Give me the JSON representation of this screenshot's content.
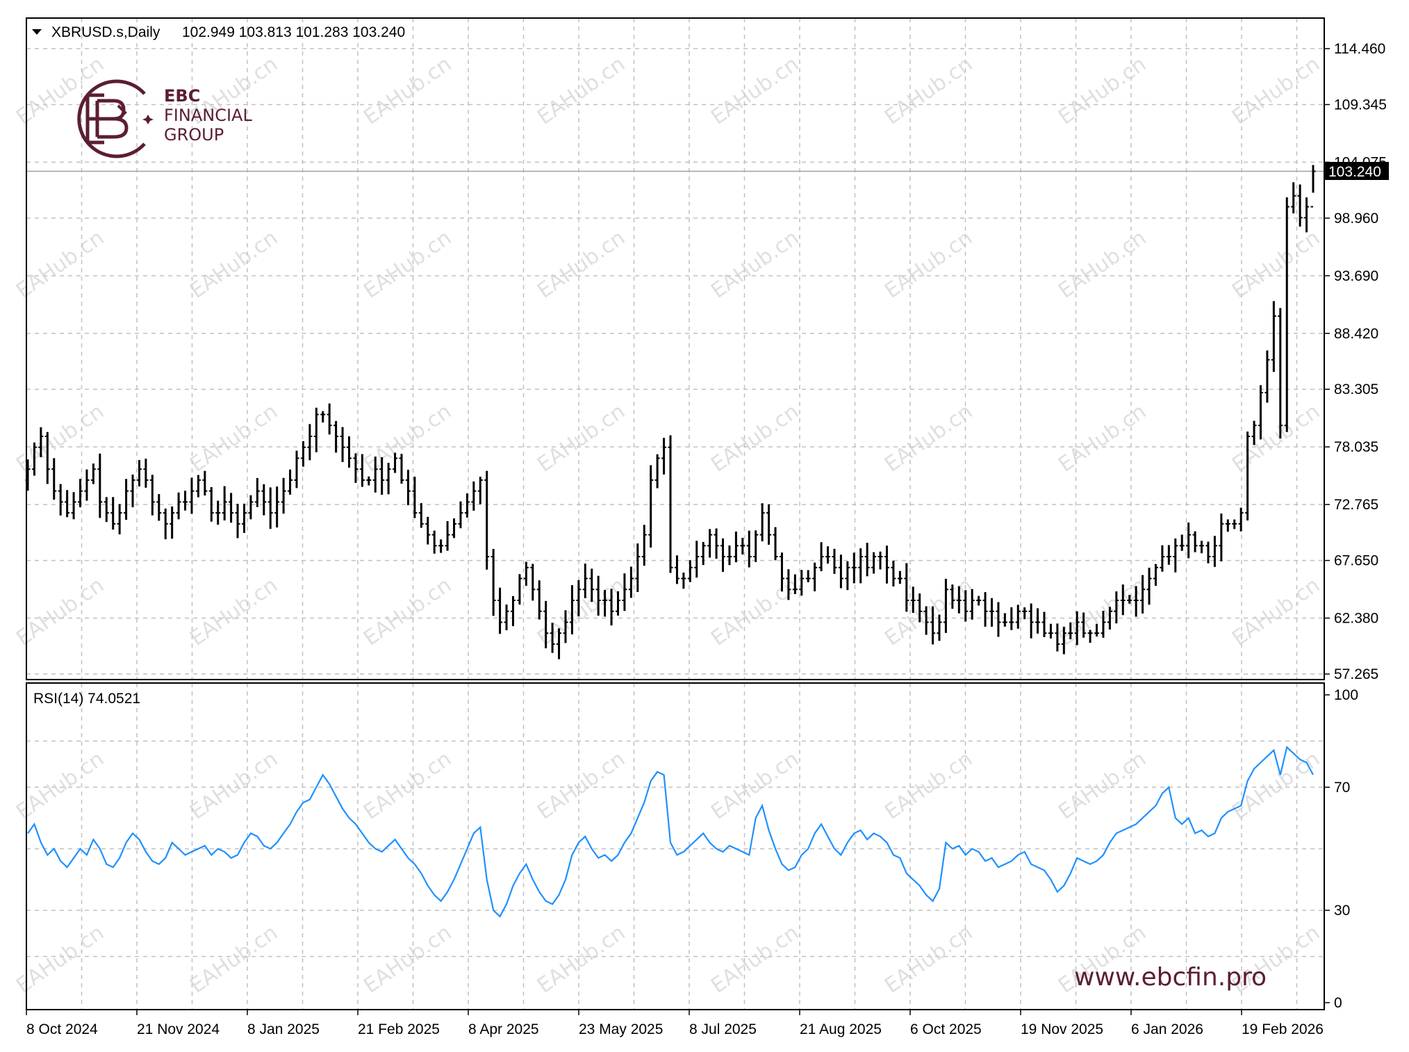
{
  "header": {
    "symbol_line": "XBRUSD.s,Daily",
    "ohlc_line": "102.949 103.813 101.283 103.240",
    "dropdown_icon": "triangle-down-icon"
  },
  "indicator": {
    "label": "RSI(14) 74.0521"
  },
  "logo": {
    "line1": "EBC",
    "line2": "FINANCIAL",
    "line3": "GROUP",
    "mark_icon": "ebc-monogram-icon"
  },
  "watermark": "EAHub.cn",
  "website": "www.ebcfin.pro",
  "price_label": "103.240",
  "colors": {
    "bars": "#000000",
    "rsi_line": "#1e90ff",
    "grid": "#c0c0c0",
    "brand": "#5b1e34",
    "price_label_bg": "#000000"
  },
  "chart_data": [
    {
      "type": "ohlc",
      "series_name": "XBRUSD.s",
      "timeframe": "Daily",
      "y_ticks": [
        "114.460",
        "109.345",
        "104.075",
        "98.960",
        "93.690",
        "88.420",
        "83.305",
        "78.035",
        "72.765",
        "67.650",
        "62.380",
        "57.265"
      ],
      "ylim": [
        57.265,
        114.46
      ],
      "x_ticks": [
        "8 Oct 2024",
        "21 Nov 2024",
        "8 Jan 2025",
        "21 Feb 2025",
        "8 Apr 2025",
        "23 May 2025",
        "8 Jul 2025",
        "21 Aug 2025",
        "6 Oct 2025",
        "19 Nov 2025",
        "6 Jan 2026",
        "19 Feb 2026"
      ],
      "current_price": 103.24,
      "last_bar": {
        "open": 102.949,
        "high": 103.813,
        "low": 101.283,
        "close": 103.24
      },
      "grid": true,
      "approx_closes": [
        76,
        78,
        79,
        76,
        74,
        73,
        72,
        73,
        74,
        75,
        76,
        73,
        72,
        71,
        72,
        74,
        75,
        76,
        75,
        73,
        72,
        71,
        72,
        73,
        73,
        74,
        75,
        74,
        72,
        72,
        73,
        72,
        71,
        72,
        73,
        74,
        73,
        72,
        73,
        74,
        75,
        77,
        78,
        79,
        81,
        81,
        80,
        79,
        78,
        77,
        76,
        75,
        75,
        76,
        75,
        76,
        77,
        75,
        74,
        72,
        71,
        70,
        69,
        69,
        70,
        71,
        72,
        73,
        74,
        75,
        68,
        64,
        62,
        63,
        64,
        66,
        67,
        65,
        63,
        61,
        60,
        61,
        62,
        64,
        65,
        66,
        65,
        64,
        64,
        63,
        64,
        65,
        66,
        68,
        70,
        75,
        77,
        78,
        67,
        66,
        66,
        67,
        68,
        69,
        70,
        69,
        68,
        68,
        69,
        69,
        68,
        70,
        72,
        70,
        68,
        66,
        65,
        65,
        66,
        66,
        67,
        68,
        68,
        67,
        66,
        67,
        67,
        68,
        67,
        68,
        68,
        67,
        66,
        66,
        64,
        64,
        63,
        62,
        61,
        62,
        65,
        64,
        64,
        63,
        64,
        64,
        63,
        63,
        62,
        62,
        62,
        63,
        63,
        62,
        62,
        61,
        61,
        60,
        61,
        61,
        62,
        61,
        61,
        61,
        62,
        63,
        64,
        64,
        64,
        64,
        65,
        66,
        67,
        68,
        68,
        69,
        69,
        70,
        69,
        69,
        68,
        69,
        71,
        71,
        71,
        72,
        79,
        80,
        83,
        86,
        90,
        80,
        100,
        101,
        99,
        100,
        103.24
      ]
    },
    {
      "type": "line",
      "series_name": "RSI(14)",
      "current_value": 74.0521,
      "y_ticks": [
        "100",
        "70",
        "30",
        "0"
      ],
      "ylim": [
        0,
        100
      ],
      "levels": [
        30,
        70
      ],
      "grid": true,
      "approx_values": [
        55,
        58,
        52,
        48,
        50,
        46,
        44,
        47,
        50,
        48,
        53,
        50,
        45,
        44,
        47,
        52,
        55,
        53,
        49,
        46,
        45,
        47,
        52,
        50,
        48,
        49,
        50,
        51,
        48,
        50,
        49,
        47,
        48,
        52,
        55,
        54,
        51,
        50,
        52,
        55,
        58,
        62,
        65,
        66,
        70,
        74,
        71,
        67,
        63,
        60,
        58,
        55,
        52,
        50,
        49,
        51,
        53,
        50,
        47,
        45,
        42,
        38,
        35,
        33,
        36,
        40,
        45,
        50,
        55,
        57,
        40,
        30,
        28,
        32,
        38,
        42,
        45,
        40,
        36,
        33,
        32,
        35,
        40,
        48,
        52,
        54,
        50,
        47,
        48,
        46,
        48,
        52,
        55,
        60,
        65,
        72,
        75,
        74,
        52,
        48,
        49,
        51,
        53,
        55,
        52,
        50,
        49,
        51,
        50,
        49,
        48,
        60,
        64,
        56,
        50,
        45,
        43,
        44,
        48,
        50,
        55,
        58,
        54,
        50,
        48,
        52,
        55,
        56,
        53,
        55,
        54,
        52,
        48,
        47,
        42,
        40,
        38,
        35,
        33,
        37,
        52,
        50,
        51,
        48,
        50,
        49,
        46,
        47,
        44,
        45,
        46,
        48,
        49,
        45,
        44,
        43,
        40,
        36,
        38,
        42,
        47,
        46,
        45,
        46,
        48,
        52,
        55,
        56,
        57,
        58,
        60,
        62,
        64,
        68,
        70,
        60,
        58,
        60,
        55,
        56,
        54,
        55,
        60,
        62,
        63,
        64,
        72,
        76,
        78,
        80,
        82,
        74,
        83,
        81,
        79,
        78,
        74.05
      ]
    }
  ]
}
